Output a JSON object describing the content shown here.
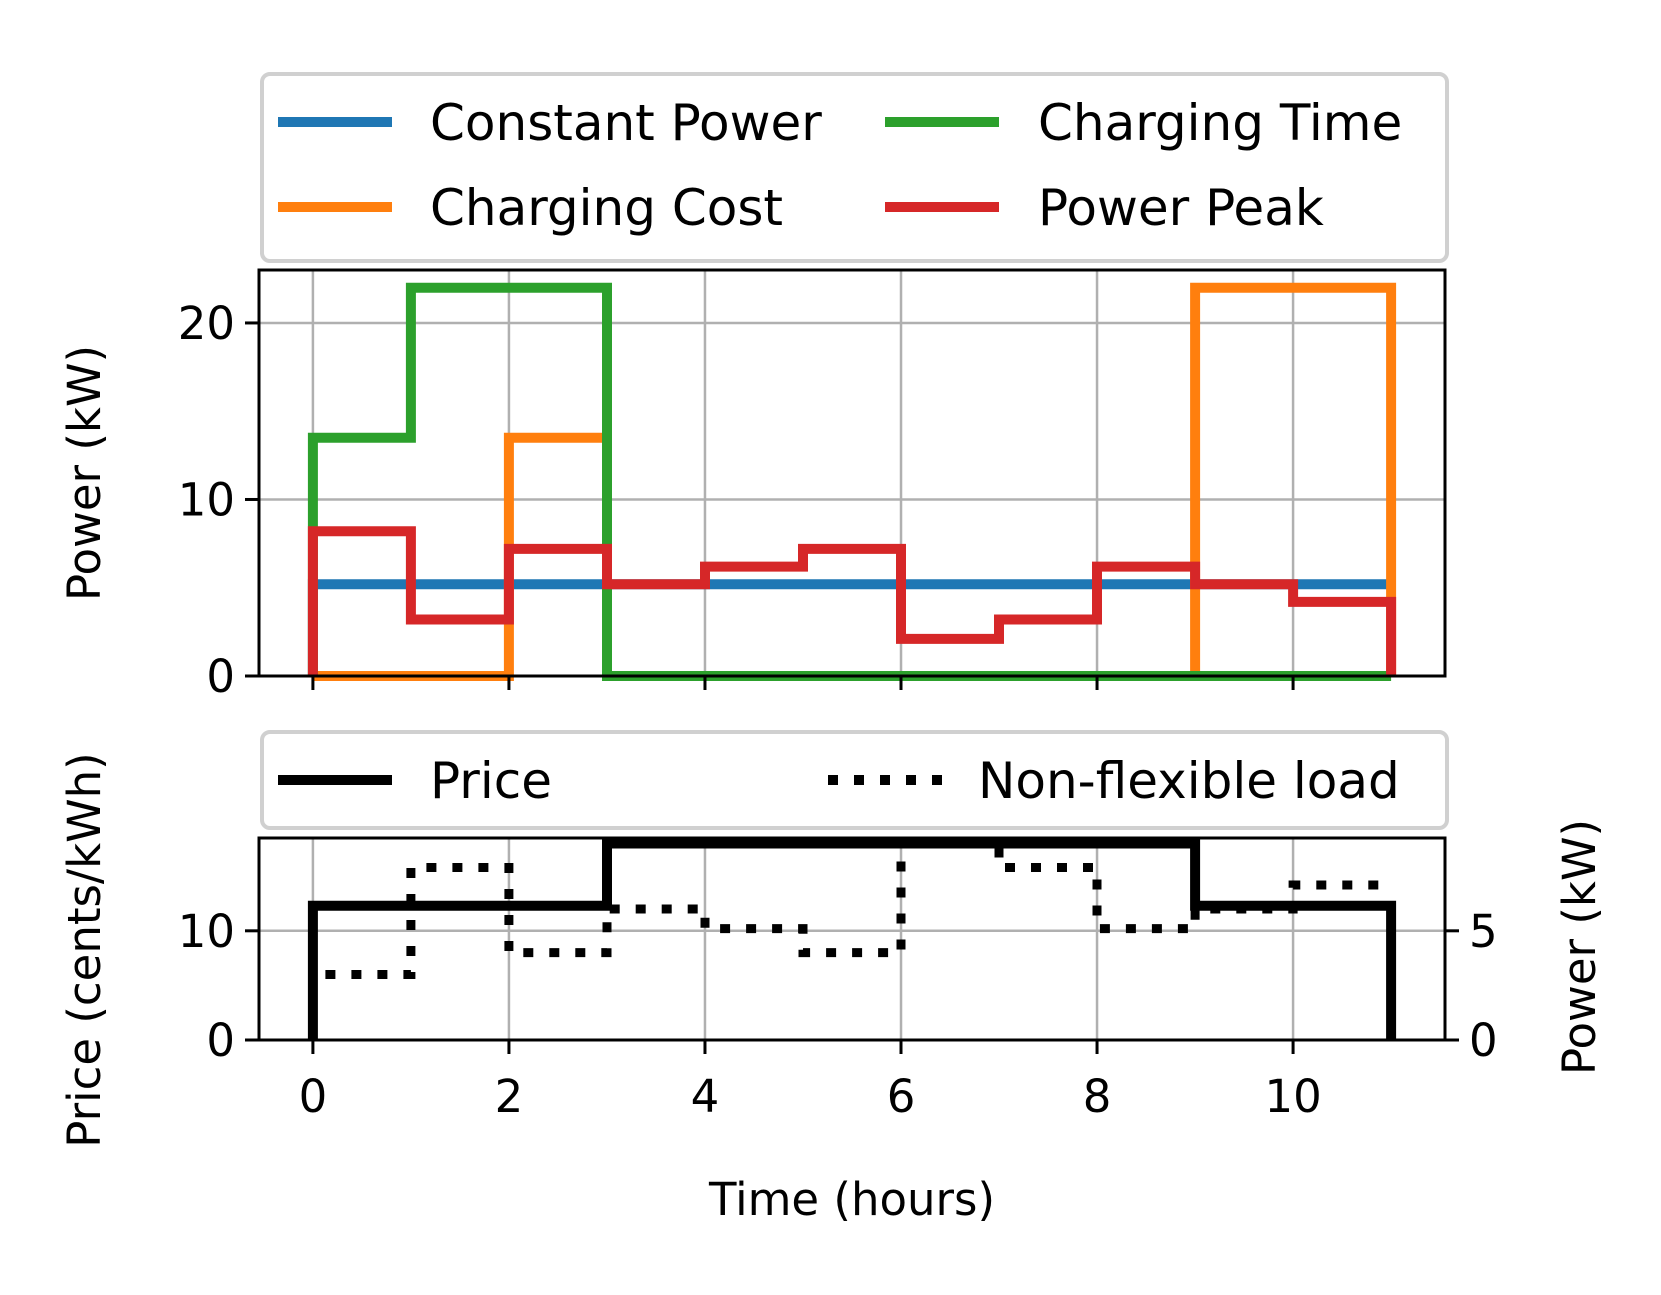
{
  "chart_data": [
    {
      "type": "line",
      "step": "post",
      "ylabel": "Power (kW)",
      "ylim": [
        0,
        23
      ],
      "yticks": [
        0,
        10,
        20
      ],
      "xlim": [
        -0.55,
        11.55
      ],
      "xticks": [
        0,
        2,
        4,
        6,
        8,
        10
      ],
      "grid": true,
      "legend": {
        "placement": "above",
        "columns": 2
      },
      "series": [
        {
          "name": "Constant Power",
          "color": "#1f77b4",
          "x": [
            0,
            11
          ],
          "values": [
            5.2,
            5.2
          ]
        },
        {
          "name": "Charging Cost",
          "color": "#ff7f0e",
          "x": [
            0,
            2,
            3,
            9,
            11
          ],
          "values": [
            0,
            13.5,
            0,
            22,
            0
          ]
        },
        {
          "name": "Charging Time",
          "color": "#2ca02c",
          "x": [
            0,
            1,
            3,
            11
          ],
          "values": [
            13.5,
            22,
            0,
            0
          ]
        },
        {
          "name": "Power Peak",
          "color": "#d62728",
          "x": [
            0,
            1,
            2,
            3,
            4,
            5,
            6,
            7,
            8,
            9,
            10,
            11
          ],
          "values": [
            8.2,
            3.2,
            7.2,
            5.2,
            6.2,
            7.2,
            2.1,
            3.2,
            6.2,
            5.2,
            4.2,
            0
          ]
        }
      ]
    },
    {
      "type": "line",
      "step": "post",
      "xlabel": "Time (hours)",
      "ylabel": "Price (cents/kWh)",
      "ylabel_right": "Power (kW)",
      "ylim": [
        0,
        18.5
      ],
      "yticks": [
        0,
        10
      ],
      "ylim_right": [
        0,
        9.25
      ],
      "yticks_right": [
        0,
        5
      ],
      "xlim": [
        -0.55,
        11.55
      ],
      "xticks": [
        0,
        2,
        4,
        6,
        8,
        10
      ],
      "xticklabels": [
        "0",
        "2",
        "4",
        "6",
        "8",
        "10"
      ],
      "grid": true,
      "legend": {
        "placement": "above",
        "columns": 2
      },
      "series": [
        {
          "name": "Price",
          "axis": "left",
          "color": "#000000",
          "style": "solid",
          "x": [
            0,
            3,
            9,
            11
          ],
          "values": [
            12.3,
            18.0,
            12.3,
            0
          ]
        },
        {
          "name": "Non-flexible load",
          "axis": "right",
          "color": "#000000",
          "style": "dotted",
          "x": [
            0,
            1,
            2,
            3,
            4,
            5,
            6,
            7,
            8,
            9,
            10,
            11
          ],
          "values": [
            3.0,
            7.9,
            4.0,
            6.0,
            5.1,
            4.0,
            9.0,
            7.9,
            5.1,
            6.0,
            7.1,
            7.1
          ]
        }
      ]
    }
  ]
}
